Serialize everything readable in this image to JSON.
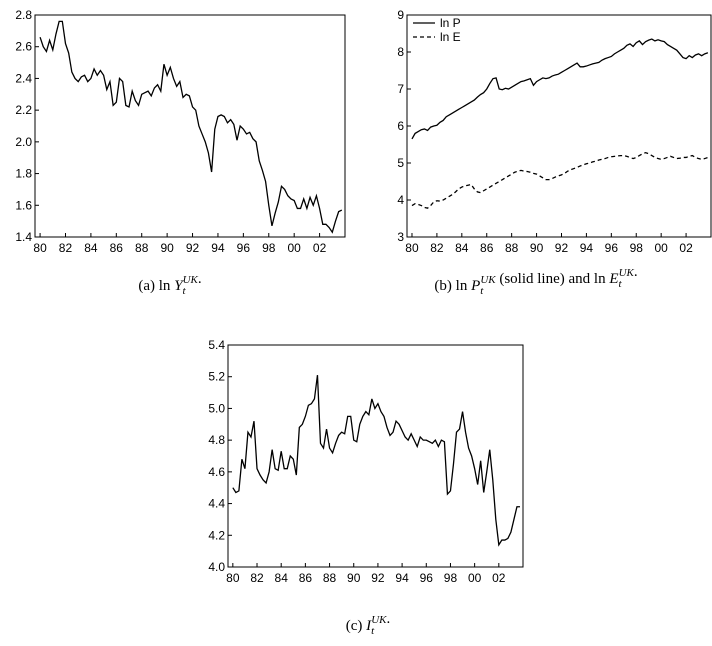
{
  "chart_data": [
    {
      "type": "line",
      "caption": [
        {
          "text": "(a) ln "
        },
        {
          "symbol": "Y",
          "sub": "t",
          "sup": "UK"
        },
        {
          "text": "."
        }
      ],
      "x": [
        1980,
        1980.25,
        1980.5,
        1980.75,
        1981,
        1981.25,
        1981.5,
        1981.75,
        1982,
        1982.25,
        1982.5,
        1982.75,
        1983,
        1983.25,
        1983.5,
        1983.75,
        1984,
        1984.25,
        1984.5,
        1984.75,
        1985,
        1985.25,
        1985.5,
        1985.75,
        1986,
        1986.25,
        1986.5,
        1986.75,
        1987,
        1987.25,
        1987.5,
        1987.75,
        1988,
        1988.25,
        1988.5,
        1988.75,
        1989,
        1989.25,
        1989.5,
        1989.75,
        1990,
        1990.25,
        1990.5,
        1990.75,
        1991,
        1991.25,
        1991.5,
        1991.75,
        1992,
        1992.25,
        1992.5,
        1992.75,
        1993,
        1993.25,
        1993.5,
        1993.75,
        1994,
        1994.25,
        1994.5,
        1994.75,
        1995,
        1995.25,
        1995.5,
        1995.75,
        1996,
        1996.25,
        1996.5,
        1996.75,
        1997,
        1997.25,
        1997.5,
        1997.75,
        1998,
        1998.25,
        1998.5,
        1998.75,
        1999,
        1999.25,
        1999.5,
        1999.75,
        2000,
        2000.25,
        2000.5,
        2000.75,
        2001,
        2001.25,
        2001.5,
        2001.75,
        2002,
        2002.25,
        2002.5,
        2002.75,
        2003,
        2003.25,
        2003.5,
        2003.75
      ],
      "series": [
        {
          "color": "#000000",
          "dashed": false,
          "values": [
            2.66,
            2.6,
            2.57,
            2.64,
            2.58,
            2.68,
            2.76,
            2.76,
            2.62,
            2.56,
            2.44,
            2.4,
            2.38,
            2.41,
            2.42,
            2.38,
            2.4,
            2.46,
            2.42,
            2.45,
            2.42,
            2.33,
            2.38,
            2.23,
            2.25,
            2.4,
            2.38,
            2.23,
            2.22,
            2.32,
            2.26,
            2.23,
            2.3,
            2.31,
            2.32,
            2.29,
            2.34,
            2.36,
            2.32,
            2.49,
            2.42,
            2.47,
            2.4,
            2.35,
            2.38,
            2.28,
            2.3,
            2.29,
            2.22,
            2.2,
            2.1,
            2.05,
            2.0,
            1.93,
            1.81,
            2.08,
            2.16,
            2.17,
            2.16,
            2.12,
            2.14,
            2.11,
            2.01,
            2.1,
            2.08,
            2.05,
            2.06,
            2.02,
            2.0,
            1.88,
            1.82,
            1.75,
            1.6,
            1.47,
            1.55,
            1.62,
            1.72,
            1.7,
            1.66,
            1.64,
            1.63,
            1.58,
            1.58,
            1.64,
            1.58,
            1.65,
            1.6,
            1.66,
            1.58,
            1.48,
            1.48,
            1.46,
            1.43,
            1.5,
            1.56,
            1.57
          ]
        }
      ],
      "xlim": [
        1979.6,
        2004
      ],
      "xticks": [
        {
          "value": 1980,
          "label": "80"
        },
        {
          "value": 1982,
          "label": "82"
        },
        {
          "value": 1984,
          "label": "84"
        },
        {
          "value": 1986,
          "label": "86"
        },
        {
          "value": 1988,
          "label": "88"
        },
        {
          "value": 1990,
          "label": "90"
        },
        {
          "value": 1992,
          "label": "92"
        },
        {
          "value": 1994,
          "label": "94"
        },
        {
          "value": 1996,
          "label": "96"
        },
        {
          "value": 1998,
          "label": "98"
        },
        {
          "value": 2000,
          "label": "00"
        },
        {
          "value": 2002,
          "label": "02"
        }
      ],
      "ylim": [
        1.4,
        2.8
      ],
      "yticks": [
        {
          "value": 1.4,
          "label": "1.4"
        },
        {
          "value": 1.6,
          "label": "1.6"
        },
        {
          "value": 1.8,
          "label": "1.8"
        },
        {
          "value": 2.0,
          "label": "2.0"
        },
        {
          "value": 2.2,
          "label": "2.2"
        },
        {
          "value": 2.4,
          "label": "2.4"
        },
        {
          "value": 2.6,
          "label": "2.6"
        },
        {
          "value": 2.8,
          "label": "2.8"
        }
      ]
    },
    {
      "type": "line",
      "caption": [
        {
          "text": "(b) ln "
        },
        {
          "symbol": "P",
          "sub": "t",
          "sup": "UK"
        },
        {
          "text": " (solid line) and ln "
        },
        {
          "symbol": "E",
          "sub": "t",
          "sup": "UK"
        },
        {
          "text": "."
        }
      ],
      "x": [
        1980,
        1980.25,
        1980.5,
        1980.75,
        1981,
        1981.25,
        1981.5,
        1981.75,
        1982,
        1982.25,
        1982.5,
        1982.75,
        1983,
        1983.25,
        1983.5,
        1983.75,
        1984,
        1984.25,
        1984.5,
        1984.75,
        1985,
        1985.25,
        1985.5,
        1985.75,
        1986,
        1986.25,
        1986.5,
        1986.75,
        1987,
        1987.25,
        1987.5,
        1987.75,
        1988,
        1988.25,
        1988.5,
        1988.75,
        1989,
        1989.25,
        1989.5,
        1989.75,
        1990,
        1990.25,
        1990.5,
        1990.75,
        1991,
        1991.25,
        1991.5,
        1991.75,
        1992,
        1992.25,
        1992.5,
        1992.75,
        1993,
        1993.25,
        1993.5,
        1993.75,
        1994,
        1994.25,
        1994.5,
        1994.75,
        1995,
        1995.25,
        1995.5,
        1995.75,
        1996,
        1996.25,
        1996.5,
        1996.75,
        1997,
        1997.25,
        1997.5,
        1997.75,
        1998,
        1998.25,
        1998.5,
        1998.75,
        1999,
        1999.25,
        1999.5,
        1999.75,
        2000,
        2000.25,
        2000.5,
        2000.75,
        2001,
        2001.25,
        2001.5,
        2001.75,
        2002,
        2002.25,
        2002.5,
        2002.75,
        2003,
        2003.25,
        2003.5,
        2003.75
      ],
      "series": [
        {
          "name": "ln P",
          "color": "#000000",
          "dashed": false,
          "values": [
            5.65,
            5.8,
            5.85,
            5.9,
            5.92,
            5.88,
            5.97,
            6.0,
            6.02,
            6.1,
            6.15,
            6.25,
            6.3,
            6.35,
            6.4,
            6.45,
            6.5,
            6.55,
            6.6,
            6.65,
            6.7,
            6.78,
            6.85,
            6.9,
            7.0,
            7.15,
            7.28,
            7.3,
            7.0,
            6.98,
            7.02,
            7.0,
            7.05,
            7.1,
            7.15,
            7.2,
            7.22,
            7.25,
            7.28,
            7.1,
            7.2,
            7.25,
            7.3,
            7.28,
            7.3,
            7.35,
            7.38,
            7.4,
            7.45,
            7.5,
            7.55,
            7.6,
            7.65,
            7.7,
            7.6,
            7.6,
            7.62,
            7.65,
            7.68,
            7.7,
            7.72,
            7.78,
            7.82,
            7.85,
            7.88,
            7.95,
            8.0,
            8.05,
            8.1,
            8.18,
            8.22,
            8.15,
            8.25,
            8.3,
            8.2,
            8.28,
            8.32,
            8.35,
            8.3,
            8.33,
            8.3,
            8.28,
            8.2,
            8.15,
            8.1,
            8.05,
            7.95,
            7.85,
            7.82,
            7.9,
            7.85,
            7.92,
            7.95,
            7.9,
            7.95,
            7.98
          ]
        },
        {
          "name": "ln E",
          "color": "#000000",
          "dashed": true,
          "values": [
            3.85,
            3.9,
            3.88,
            3.85,
            3.8,
            3.78,
            3.85,
            3.95,
            3.98,
            3.97,
            4.0,
            4.05,
            4.1,
            4.15,
            4.22,
            4.3,
            4.35,
            4.38,
            4.4,
            4.42,
            4.3,
            4.22,
            4.2,
            4.25,
            4.3,
            4.35,
            4.4,
            4.45,
            4.5,
            4.55,
            4.6,
            4.65,
            4.7,
            4.75,
            4.78,
            4.8,
            4.78,
            4.77,
            4.75,
            4.72,
            4.7,
            4.65,
            4.6,
            4.55,
            4.55,
            4.58,
            4.62,
            4.65,
            4.68,
            4.72,
            4.78,
            4.82,
            4.85,
            4.88,
            4.92,
            4.95,
            4.98,
            5.0,
            5.03,
            5.05,
            5.08,
            5.1,
            5.12,
            5.15,
            5.17,
            5.18,
            5.19,
            5.2,
            5.2,
            5.18,
            5.15,
            5.12,
            5.15,
            5.2,
            5.25,
            5.28,
            5.25,
            5.2,
            5.15,
            5.12,
            5.1,
            5.12,
            5.15,
            5.18,
            5.15,
            5.12,
            5.13,
            5.15,
            5.15,
            5.18,
            5.2,
            5.15,
            5.12,
            5.1,
            5.12,
            5.15
          ]
        }
      ],
      "legend": "upper-left",
      "xlim": [
        1979.6,
        2004
      ],
      "xticks": [
        {
          "value": 1980,
          "label": "80"
        },
        {
          "value": 1982,
          "label": "82"
        },
        {
          "value": 1984,
          "label": "84"
        },
        {
          "value": 1986,
          "label": "86"
        },
        {
          "value": 1988,
          "label": "88"
        },
        {
          "value": 1990,
          "label": "90"
        },
        {
          "value": 1992,
          "label": "92"
        },
        {
          "value": 1994,
          "label": "94"
        },
        {
          "value": 1996,
          "label": "96"
        },
        {
          "value": 1998,
          "label": "98"
        },
        {
          "value": 2000,
          "label": "00"
        },
        {
          "value": 2002,
          "label": "02"
        }
      ],
      "ylim": [
        3,
        9
      ],
      "yticks": [
        3,
        4,
        5,
        6,
        7,
        8,
        9
      ]
    },
    {
      "type": "line",
      "caption": [
        {
          "text": "(c) "
        },
        {
          "symbol": "I",
          "sub": "t",
          "sup": "UK"
        },
        {
          "text": "."
        }
      ],
      "x": [
        1980,
        1980.25,
        1980.5,
        1980.75,
        1981,
        1981.25,
        1981.5,
        1981.75,
        1982,
        1982.25,
        1982.5,
        1982.75,
        1983,
        1983.25,
        1983.5,
        1983.75,
        1984,
        1984.25,
        1984.5,
        1984.75,
        1985,
        1985.25,
        1985.5,
        1985.75,
        1986,
        1986.25,
        1986.5,
        1986.75,
        1987,
        1987.25,
        1987.5,
        1987.75,
        1988,
        1988.25,
        1988.5,
        1988.75,
        1989,
        1989.25,
        1989.5,
        1989.75,
        1990,
        1990.25,
        1990.5,
        1990.75,
        1991,
        1991.25,
        1991.5,
        1991.75,
        1992,
        1992.25,
        1992.5,
        1992.75,
        1993,
        1993.25,
        1993.5,
        1993.75,
        1994,
        1994.25,
        1994.5,
        1994.75,
        1995,
        1995.25,
        1995.5,
        1995.75,
        1996,
        1996.25,
        1996.5,
        1996.75,
        1997,
        1997.25,
        1997.5,
        1997.75,
        1998,
        1998.25,
        1998.5,
        1998.75,
        1999,
        1999.25,
        1999.5,
        1999.75,
        2000,
        2000.25,
        2000.5,
        2000.75,
        2001,
        2001.25,
        2001.5,
        2001.75,
        2002,
        2002.25,
        2002.5,
        2002.75,
        2003,
        2003.25,
        2003.5,
        2003.75
      ],
      "series": [
        {
          "color": "#000000",
          "dashed": false,
          "values": [
            4.5,
            4.47,
            4.48,
            4.68,
            4.62,
            4.85,
            4.82,
            4.92,
            4.62,
            4.58,
            4.55,
            4.53,
            4.6,
            4.74,
            4.62,
            4.61,
            4.73,
            4.62,
            4.62,
            4.7,
            4.68,
            4.58,
            4.88,
            4.9,
            4.95,
            5.02,
            5.03,
            5.06,
            5.21,
            4.78,
            4.75,
            4.87,
            4.75,
            4.72,
            4.78,
            4.83,
            4.85,
            4.84,
            4.95,
            4.95,
            4.8,
            4.79,
            4.9,
            4.95,
            4.98,
            4.96,
            5.06,
            5.0,
            5.03,
            4.98,
            4.95,
            4.88,
            4.83,
            4.85,
            4.92,
            4.9,
            4.86,
            4.82,
            4.8,
            4.84,
            4.8,
            4.76,
            4.82,
            4.8,
            4.8,
            4.79,
            4.78,
            4.8,
            4.76,
            4.8,
            4.79,
            4.46,
            4.48,
            4.65,
            4.85,
            4.87,
            4.98,
            4.85,
            4.75,
            4.7,
            4.62,
            4.52,
            4.67,
            4.47,
            4.6,
            4.74,
            4.55,
            4.3,
            4.14,
            4.17,
            4.17,
            4.18,
            4.22,
            4.3,
            4.38,
            4.38
          ]
        }
      ],
      "xlim": [
        1979.6,
        2004
      ],
      "xticks": [
        {
          "value": 1980,
          "label": "80"
        },
        {
          "value": 1982,
          "label": "82"
        },
        {
          "value": 1984,
          "label": "84"
        },
        {
          "value": 1986,
          "label": "86"
        },
        {
          "value": 1988,
          "label": "88"
        },
        {
          "value": 1990,
          "label": "90"
        },
        {
          "value": 1992,
          "label": "92"
        },
        {
          "value": 1994,
          "label": "94"
        },
        {
          "value": 1996,
          "label": "96"
        },
        {
          "value": 1998,
          "label": "98"
        },
        {
          "value": 2000,
          "label": "00"
        },
        {
          "value": 2002,
          "label": "02"
        }
      ],
      "ylim": [
        4.0,
        5.4
      ],
      "yticks": [
        {
          "value": 4.0,
          "label": "4.0"
        },
        {
          "value": 4.2,
          "label": "4.2"
        },
        {
          "value": 4.4,
          "label": "4.4"
        },
        {
          "value": 4.6,
          "label": "4.6"
        },
        {
          "value": 4.8,
          "label": "4.8"
        },
        {
          "value": 5.0,
          "label": "5.0"
        },
        {
          "value": 5.2,
          "label": "5.2"
        },
        {
          "value": 5.4,
          "label": "5.4"
        }
      ]
    }
  ]
}
